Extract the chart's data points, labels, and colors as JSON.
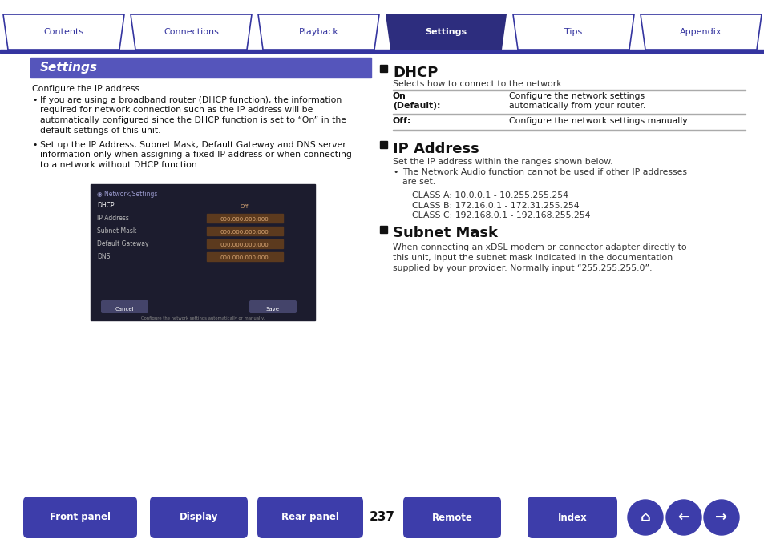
{
  "bg_color": "#ffffff",
  "tab_active_color": "#2d2d7e",
  "tab_inactive_color": "#ffffff",
  "tab_border_color": "#3535a0",
  "tab_text_active": "#ffffff",
  "tab_text_inactive": "#3535a0",
  "tabs": [
    "Contents",
    "Connections",
    "Playback",
    "Settings",
    "Tips",
    "Appendix"
  ],
  "active_tab": 3,
  "settings_hdr_bg": "#5555bb",
  "settings_hdr_text": "Settings",
  "settings_hdr_color": "#ffffff",
  "body_color": "#111111",
  "page_number": "237",
  "configure_text": "Configure the IP address.",
  "bullet1_lines": [
    "If you are using a broadband router (DHCP function), the information",
    "required for network connection such as the IP address will be",
    "automatically configured since the DHCP function is set to “On” in the",
    "default settings of this unit."
  ],
  "bullet2_lines": [
    "Set up the IP Address, Subnet Mask, Default Gateway and DNS server",
    "information only when assigning a fixed IP address or when connecting",
    "to a network without DHCP function."
  ],
  "dhcp_title": "DHCP",
  "dhcp_subtitle": "Selects how to connect to the network.",
  "dhcp_on_label": "On\n(Default):",
  "dhcp_on_desc": "Configure the network settings\nautomatically from your router.",
  "dhcp_off_label": "Off:",
  "dhcp_off_desc": "Configure the network settings manually.",
  "ip_title": "IP Address",
  "ip_subtitle": "Set the IP address within the ranges shown below.",
  "ip_bullet_lines": [
    "The Network Audio function cannot be used if other IP addresses",
    "are set."
  ],
  "ip_class_a": "CLASS A: 10.0.0.1 - 10.255.255.254",
  "ip_class_b": "CLASS B: 172.16.0.1 - 172.31.255.254",
  "ip_class_c": "CLASS C: 192.168.0.1 - 192.168.255.254",
  "subnet_title": "Subnet Mask",
  "subnet_desc_lines": [
    "When connecting an xDSL modem or connector adapter directly to",
    "this unit, input the subnet mask indicated in the documentation",
    "supplied by your provider. Normally input “255.255.255.0”."
  ],
  "scr_rows": [
    [
      "DHCP",
      "Off",
      true
    ],
    [
      "IP Address",
      "000.000.000.000",
      false
    ],
    [
      "Subnet Mask",
      "000.000.000.000",
      false
    ],
    [
      "Default Gateway",
      "000.000.000.000",
      false
    ],
    [
      "DNS",
      "000.000.000.000",
      false
    ]
  ],
  "bottom_buttons": [
    "Front panel",
    "Display",
    "Rear panel",
    "Remote",
    "Index"
  ],
  "bottom_btn_color": "#3d3daa",
  "bottom_btn_text_color": "#ffffff"
}
